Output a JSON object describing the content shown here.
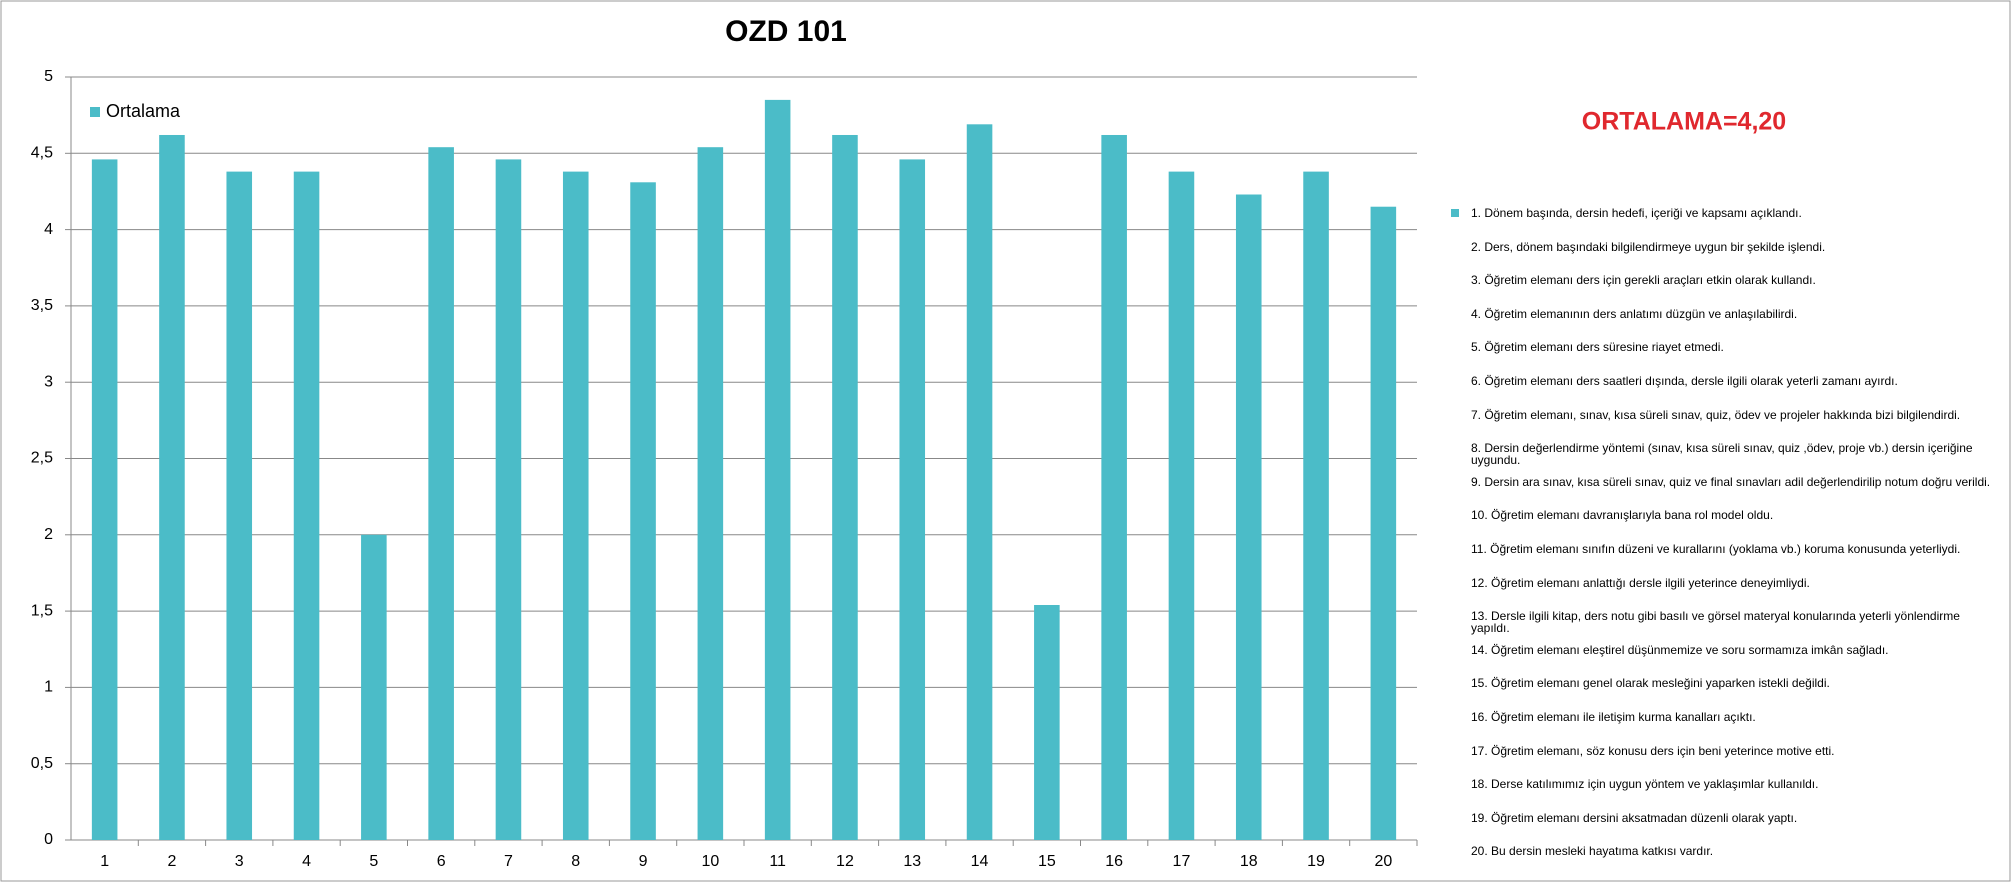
{
  "chart_data": {
    "type": "bar",
    "title": "OZD 101",
    "categories": [
      "1",
      "2",
      "3",
      "4",
      "5",
      "6",
      "7",
      "8",
      "9",
      "10",
      "11",
      "12",
      "13",
      "14",
      "15",
      "16",
      "17",
      "18",
      "19",
      "20"
    ],
    "series": [
      {
        "name": "Ortalama",
        "color": "#4bbcc8",
        "values": [
          4.46,
          4.62,
          4.38,
          4.38,
          2,
          4.54,
          4.46,
          4.38,
          4.31,
          4.54,
          4.85,
          4.62,
          4.46,
          4.69,
          1.54,
          4.62,
          4.38,
          4.23,
          4.38,
          4.15
        ]
      }
    ],
    "ylim": [
      0,
      5
    ],
    "yticks": [
      0,
      {
        "value": 0.5,
        "label": "0,5"
      },
      1,
      {
        "value": 1.5,
        "label": "1,5"
      },
      2,
      {
        "value": 2.5,
        "label": "2,5"
      },
      3,
      {
        "value": 3.5,
        "label": "3,5"
      },
      4,
      {
        "value": 4.5,
        "label": "4,5"
      },
      5
    ],
    "grid": true,
    "annotation": "ORTALAMA=4,20",
    "items": [
      "1. Dönem başında, dersin hedefi, içeriği ve kapsamı açıklandı.",
      "2. Ders, dönem başındaki bilgilendirmeye uygun bir şekilde işlendi.",
      "3. Öğretim elemanı ders için gerekli araçları etkin olarak kullandı.",
      "4. Öğretim elemanının ders anlatımı düzgün ve anlaşılabilirdi.",
      "5. Öğretim elemanı ders süresine riayet etmedi.",
      "6. Öğretim elemanı ders saatleri dışında, dersle ilgili olarak yeterli zamanı ayırdı.",
      "7. Öğretim elemanı, sınav, kısa süreli sınav, quiz, ödev ve projeler hakkında bizi bilgilendirdi.",
      "8. Dersin değerlendirme yöntemi (sınav, kısa süreli sınav, quiz ,ödev, proje vb.) dersin içeriğine uygundu.",
      "9. Dersin ara sınav, kısa süreli sınav, quiz ve final sınavları adil değerlendirilip notum doğru verildi.",
      "10. Öğretim elemanı davranışlarıyla bana rol model oldu.",
      "11. Öğretim elemanı sınıfın düzeni ve kurallarını (yoklama vb.) koruma konusunda yeterliydi.",
      "12. Öğretim elemanı anlattığı dersle ilgili yeterince deneyimliydi.",
      "13. Dersle ilgili kitap, ders notu gibi basılı ve görsel materyal konularında yeterli yönlendirme yapıldı.",
      "14. Öğretim elemanı eleştirel düşünmemize ve soru sormamıza imkân sağladı.",
      "15. Öğretim elemanı genel olarak mesleğini yaparken istekli değildi.",
      "16. Öğretim elemanı ile iletişim kurma kanalları açıktı.",
      "17. Öğretim elemanı, söz konusu ders için beni yeterince motive etti.",
      "18. Derse katılımımız için uygun yöntem ve yaklaşımlar kullanıldı.",
      "19. Öğretim elemanı dersini aksatmadan düzenli olarak yaptı.",
      "20. Bu dersin mesleki hayatıma katkısı vardır."
    ]
  }
}
